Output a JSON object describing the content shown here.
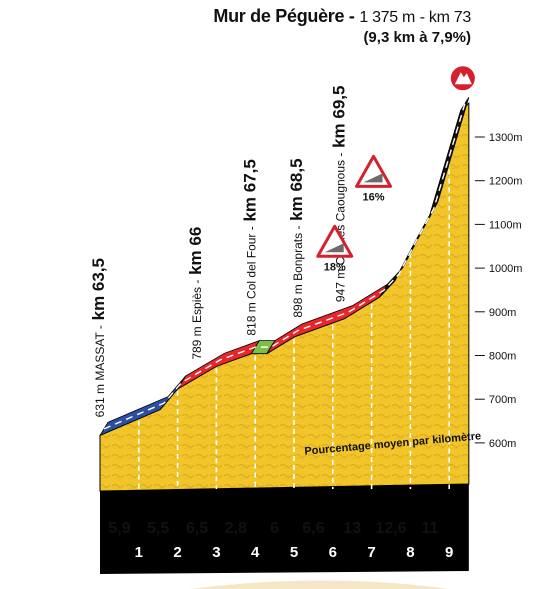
{
  "header": {
    "climb_name": "Mur de Péguère",
    "separator": "-",
    "summit_altitude": "1 375 m",
    "summit_km": "- km 73",
    "stats": "(9,3 km à 7,9%)"
  },
  "annotation": "Pourcentage moyen par kilomètre",
  "chart_data": {
    "type": "area",
    "title": "Mur de Péguère",
    "y_unit": "m",
    "ylim": [
      480,
      1375
    ],
    "yticks": [
      {
        "value": 1300,
        "label": "1300m"
      },
      {
        "value": 1200,
        "label": "1200m"
      },
      {
        "value": 1100,
        "label": "1100m"
      },
      {
        "value": 1000,
        "label": "1000m"
      },
      {
        "value": 900,
        "label": "900m"
      },
      {
        "value": 800,
        "label": "800m"
      },
      {
        "value": 700,
        "label": "700m"
      },
      {
        "value": 600,
        "label": "600m"
      }
    ],
    "km_labels": [
      "1",
      "2",
      "3",
      "4",
      "5",
      "6",
      "7",
      "8",
      "9"
    ],
    "km_gradients": [
      "5,9",
      "5,5",
      "6,5",
      "2,8",
      "6",
      "6,6",
      "13",
      "12,6",
      "11"
    ],
    "profile": [
      {
        "km": 0.0,
        "alt": 631
      },
      {
        "km": 1.55,
        "alt": 690
      },
      {
        "km": 2.0,
        "alt": 737
      },
      {
        "km": 3.0,
        "alt": 789
      },
      {
        "km": 3.9,
        "alt": 818
      },
      {
        "km": 4.3,
        "alt": 818
      },
      {
        "km": 5.0,
        "alt": 856
      },
      {
        "km": 6.3,
        "alt": 898
      },
      {
        "km": 7.2,
        "alt": 947
      },
      {
        "km": 7.6,
        "alt": 985
      },
      {
        "km": 8.1,
        "alt": 1070
      },
      {
        "km": 8.5,
        "alt": 1135
      },
      {
        "km": 9.3,
        "alt": 1375
      }
    ],
    "segments": [
      {
        "from": 0.0,
        "to": 2.0,
        "color": "#2c4fa3"
      },
      {
        "from": 2.0,
        "to": 3.9,
        "color": "#e8262c"
      },
      {
        "from": 3.9,
        "to": 4.3,
        "color": "#7ac143"
      },
      {
        "from": 4.3,
        "to": 7.2,
        "color": "#e8262c"
      },
      {
        "from": 7.2,
        "to": 9.3,
        "color": "#111111"
      }
    ],
    "waypoints": [
      {
        "km": 0.0,
        "alt_label": "631 m",
        "name": "MASSAT",
        "km_label": "km 63,5"
      },
      {
        "km": 2.5,
        "alt_label": "789 m",
        "name": "Espiès",
        "km_label": "km 66"
      },
      {
        "km": 3.9,
        "alt_label": "818 m",
        "name": "Col del Four",
        "km_label": "km 67,5"
      },
      {
        "km": 5.1,
        "alt_label": "898 m",
        "name": "Bonprats",
        "km_label": "km 68,5"
      },
      {
        "km": 6.2,
        "alt_label": "947 m",
        "name": "Col des Caougnous",
        "km_label": "km 69,5"
      }
    ],
    "max_grades": [
      {
        "km": 6.05,
        "alt": 1050,
        "label": "18%"
      },
      {
        "km": 7.05,
        "alt": 1210,
        "label": "16%"
      }
    ],
    "colors": {
      "mountain_fill": "#f2c52b",
      "mountain_stroke": "#000000",
      "base_band": "#000000",
      "sign_red": "#d6202b",
      "axis_text": "#111111"
    }
  }
}
